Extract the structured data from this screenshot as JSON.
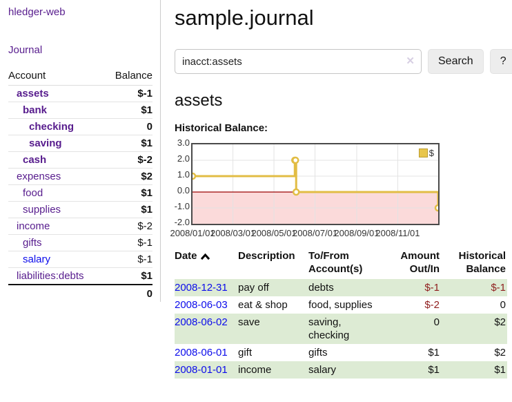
{
  "app": {
    "brand": "hledger-web",
    "title": "sample.journal"
  },
  "nav": {
    "journal": "Journal"
  },
  "sidebar": {
    "headers": {
      "account": "Account",
      "balance": "Balance"
    },
    "accounts": [
      {
        "name": "assets",
        "depth": 1,
        "bold": true,
        "balance": "$-1",
        "neg": "strong"
      },
      {
        "name": "bank",
        "depth": 2,
        "bold": true,
        "balance": "$1"
      },
      {
        "name": "checking",
        "depth": 3,
        "bold": true,
        "balance": "0"
      },
      {
        "name": "saving",
        "depth": 3,
        "bold": true,
        "balance": "$1"
      },
      {
        "name": "cash",
        "depth": 2,
        "bold": true,
        "balance": "$-2",
        "neg": "strong"
      },
      {
        "name": "expenses",
        "depth": 1,
        "bold": false,
        "balance": "$2"
      },
      {
        "name": "food",
        "depth": 2,
        "bold": false,
        "balance": "$1"
      },
      {
        "name": "supplies",
        "depth": 2,
        "bold": false,
        "balance": "$1"
      },
      {
        "name": "income",
        "depth": 1,
        "bold": false,
        "balance": "$-2",
        "neg": "soft"
      },
      {
        "name": "gifts",
        "depth": 2,
        "bold": false,
        "balance": "$-1",
        "neg": "soft"
      },
      {
        "name": "salary",
        "depth": 2,
        "bold": false,
        "balance": "$-1",
        "neg": "soft",
        "blue": true
      },
      {
        "name": "liabilities:debts",
        "depth": 1,
        "bold": false,
        "balance": "$1"
      }
    ],
    "total": "0"
  },
  "search": {
    "value": "inacct:assets",
    "clear_icon": "✕",
    "button": "Search",
    "help": "?"
  },
  "account_page": {
    "heading": "assets",
    "chart_label": "Historical Balance:"
  },
  "chart_data": {
    "type": "line",
    "title": "Historical Balance",
    "step": true,
    "x": [
      "2008-01-01",
      "2008-06-01",
      "2008-06-02",
      "2008-06-03",
      "2008-12-31"
    ],
    "series": [
      {
        "name": "$",
        "values": [
          1.0,
          2.0,
          2.0,
          0.0,
          -1.0
        ]
      }
    ],
    "xlim": [
      "2008-01-01",
      "2008-12-31"
    ],
    "ylim": [
      -2.0,
      3.0
    ],
    "yticks": [
      "3.0",
      "2.0",
      "1.0",
      "0.0",
      "-1.0",
      "-2.0"
    ],
    "xticks": [
      "2008/01/01",
      "2008/03/01",
      "2008/05/01",
      "2008/07/01",
      "2008/09/01",
      "2008/11/01"
    ],
    "legend": [
      {
        "label": "$",
        "color": "#e8c64d"
      }
    ],
    "colors": {
      "line": "#e2bd44",
      "negative_region": "#fbdada",
      "zero_line": "#990000",
      "grid": "#e3e3e3",
      "border": "#4a4a4a"
    }
  },
  "register": {
    "headers": {
      "date": "Date",
      "description": "Description",
      "accounts": "To/From Account(s)",
      "amount": "Amount Out/In",
      "balance": "Historical Balance"
    },
    "rows": [
      {
        "date": "2008-12-31",
        "description": "pay off",
        "accounts": "debts",
        "amount": "$-1",
        "balance": "$-1",
        "amount_neg": true,
        "balance_neg": true
      },
      {
        "date": "2008-06-03",
        "description": "eat & shop",
        "accounts": "food, supplies",
        "amount": "$-2",
        "balance": "0",
        "amount_neg": true,
        "balance_neg": false
      },
      {
        "date": "2008-06-02",
        "description": "save",
        "accounts": "saving, checking",
        "amount": "0",
        "balance": "$2",
        "amount_neg": false,
        "balance_neg": false
      },
      {
        "date": "2008-06-01",
        "description": "gift",
        "accounts": "gifts",
        "amount": "$1",
        "balance": "$2",
        "amount_neg": false,
        "balance_neg": false
      },
      {
        "date": "2008-01-01",
        "description": "income",
        "accounts": "salary",
        "amount": "$1",
        "balance": "$1",
        "amount_neg": false,
        "balance_neg": false
      }
    ]
  }
}
